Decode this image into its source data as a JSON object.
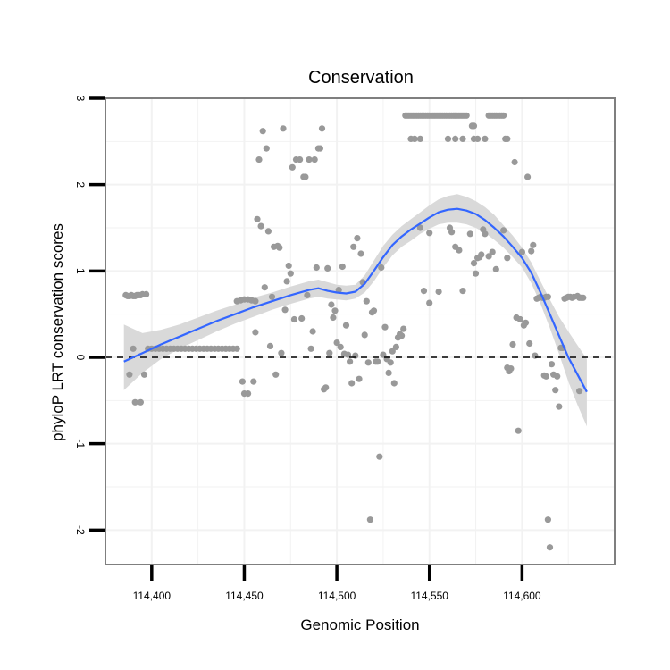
{
  "chart_data": {
    "type": "scatter",
    "title": "Conservation",
    "xlabel": "Genomic Position",
    "ylabel": "phyloP LRT conservation scores",
    "xlim": [
      114375,
      114650
    ],
    "ylim": [
      -2.4,
      3.0
    ],
    "x_ticks": [
      {
        "value": 114400,
        "label": "114,400"
      },
      {
        "value": 114450,
        "label": "114,450"
      },
      {
        "value": 114500,
        "label": "114,500"
      },
      {
        "value": 114550,
        "label": "114,550"
      },
      {
        "value": 114600,
        "label": "114,600"
      }
    ],
    "y_ticks": [
      {
        "value": 3,
        "label": "3"
      },
      {
        "value": 2,
        "label": "2"
      },
      {
        "value": 1,
        "label": "1"
      },
      {
        "value": 0,
        "label": "0"
      },
      {
        "value": -1,
        "label": "-1"
      },
      {
        "value": -2,
        "label": "-2"
      }
    ],
    "reference_line": {
      "y": 0,
      "style": "dashed"
    },
    "colors": {
      "points": "#999999",
      "smooth_line": "#3366ff",
      "ribbon": "#d9d9d9",
      "grid": "#f2f2f2",
      "border": "#7f7f7f"
    },
    "points": [
      [
        114386,
        0.72
      ],
      [
        114387,
        0.71
      ],
      [
        114388,
        0.71
      ],
      [
        114389,
        0.72
      ],
      [
        114390,
        0.71
      ],
      [
        114391,
        0.71
      ],
      [
        114392,
        0.72
      ],
      [
        114393,
        0.72
      ],
      [
        114394,
        0.72
      ],
      [
        114395,
        0.73
      ],
      [
        114397,
        0.73
      ],
      [
        114388,
        -0.2
      ],
      [
        114390,
        0.1
      ],
      [
        114391,
        -0.52
      ],
      [
        114394,
        -0.52
      ],
      [
        114396,
        -0.2
      ],
      [
        114398,
        0.1
      ],
      [
        114400,
        0.1
      ],
      [
        114402,
        0.1
      ],
      [
        114404,
        0.1
      ],
      [
        114406,
        0.1
      ],
      [
        114408,
        0.1
      ],
      [
        114410,
        0.1
      ],
      [
        114412,
        0.1
      ],
      [
        114414,
        0.1
      ],
      [
        114416,
        0.1
      ],
      [
        114418,
        0.1
      ],
      [
        114420,
        0.1
      ],
      [
        114422,
        0.1
      ],
      [
        114424,
        0.1
      ],
      [
        114426,
        0.1
      ],
      [
        114428,
        0.1
      ],
      [
        114430,
        0.1
      ],
      [
        114432,
        0.1
      ],
      [
        114434,
        0.1
      ],
      [
        114436,
        0.1
      ],
      [
        114438,
        0.1
      ],
      [
        114440,
        0.1
      ],
      [
        114442,
        0.1
      ],
      [
        114444,
        0.1
      ],
      [
        114446,
        0.1
      ],
      [
        114446,
        0.65
      ],
      [
        114448,
        0.66
      ],
      [
        114450,
        0.67
      ],
      [
        114452,
        0.67
      ],
      [
        114454,
        0.66
      ],
      [
        114456,
        0.65
      ],
      [
        114449,
        -0.28
      ],
      [
        114450,
        -0.42
      ],
      [
        114452,
        -0.42
      ],
      [
        114455,
        -0.28
      ],
      [
        114456,
        0.29
      ],
      [
        114457,
        1.6
      ],
      [
        114458,
        2.29
      ],
      [
        114459,
        1.52
      ],
      [
        114460,
        2.62
      ],
      [
        114461,
        0.81
      ],
      [
        114462,
        2.42
      ],
      [
        114463,
        1.46
      ],
      [
        114464,
        0.13
      ],
      [
        114465,
        0.7
      ],
      [
        114466,
        1.28
      ],
      [
        114467,
        -0.2
      ],
      [
        114468,
        1.29
      ],
      [
        114469,
        1.27
      ],
      [
        114470,
        0.05
      ],
      [
        114471,
        2.65
      ],
      [
        114472,
        0.55
      ],
      [
        114473,
        0.88
      ],
      [
        114474,
        1.06
      ],
      [
        114475,
        0.97
      ],
      [
        114476,
        2.2
      ],
      [
        114477,
        0.44
      ],
      [
        114478,
        2.29
      ],
      [
        114480,
        2.29
      ],
      [
        114481,
        0.45
      ],
      [
        114482,
        2.09
      ],
      [
        114483,
        2.09
      ],
      [
        114484,
        0.72
      ],
      [
        114485,
        2.29
      ],
      [
        114486,
        0.1
      ],
      [
        114487,
        0.3
      ],
      [
        114488,
        2.29
      ],
      [
        114489,
        1.04
      ],
      [
        114490,
        2.42
      ],
      [
        114491,
        2.42
      ],
      [
        114492,
        2.65
      ],
      [
        114493,
        -0.37
      ],
      [
        114494,
        -0.35
      ],
      [
        114495,
        1.03
      ],
      [
        114496,
        0.05
      ],
      [
        114497,
        0.61
      ],
      [
        114498,
        0.46
      ],
      [
        114499,
        0.54
      ],
      [
        114500,
        0.17
      ],
      [
        114501,
        0.78
      ],
      [
        114502,
        0.12
      ],
      [
        114503,
        1.05
      ],
      [
        114504,
        0.04
      ],
      [
        114505,
        0.37
      ],
      [
        114506,
        0.03
      ],
      [
        114507,
        -0.05
      ],
      [
        114508,
        -0.3
      ],
      [
        114509,
        1.28
      ],
      [
        114510,
        0.02
      ],
      [
        114511,
        1.38
      ],
      [
        114512,
        -0.25
      ],
      [
        114513,
        1.2
      ],
      [
        114514,
        0.87
      ],
      [
        114515,
        0.26
      ],
      [
        114516,
        0.65
      ],
      [
        114517,
        -0.06
      ],
      [
        114518,
        -1.88
      ],
      [
        114519,
        0.52
      ],
      [
        114520,
        0.54
      ],
      [
        114521,
        -0.05
      ],
      [
        114522,
        -0.05
      ],
      [
        114523,
        -1.15
      ],
      [
        114524,
        1.04
      ],
      [
        114525,
        0.03
      ],
      [
        114526,
        0.35
      ],
      [
        114527,
        -0.02
      ],
      [
        114528,
        -0.18
      ],
      [
        114529,
        -0.06
      ],
      [
        114530,
        0.07
      ],
      [
        114531,
        -0.3
      ],
      [
        114532,
        0.12
      ],
      [
        114533,
        0.23
      ],
      [
        114534,
        0.27
      ],
      [
        114535,
        0.25
      ],
      [
        114536,
        0.33
      ],
      [
        114537,
        2.8
      ],
      [
        114538,
        2.8
      ],
      [
        114539,
        2.8
      ],
      [
        114540,
        2.8
      ],
      [
        114541,
        2.8
      ],
      [
        114542,
        2.8
      ],
      [
        114543,
        2.8
      ],
      [
        114544,
        2.8
      ],
      [
        114545,
        2.8
      ],
      [
        114546,
        2.8
      ],
      [
        114547,
        2.8
      ],
      [
        114548,
        2.8
      ],
      [
        114549,
        2.8
      ],
      [
        114550,
        2.8
      ],
      [
        114551,
        2.8
      ],
      [
        114552,
        2.8
      ],
      [
        114553,
        2.8
      ],
      [
        114554,
        2.8
      ],
      [
        114555,
        2.8
      ],
      [
        114556,
        2.8
      ],
      [
        114557,
        2.8
      ],
      [
        114558,
        2.8
      ],
      [
        114559,
        2.8
      ],
      [
        114560,
        2.8
      ],
      [
        114561,
        2.8
      ],
      [
        114562,
        2.8
      ],
      [
        114563,
        2.8
      ],
      [
        114564,
        2.8
      ],
      [
        114565,
        2.8
      ],
      [
        114566,
        2.8
      ],
      [
        114567,
        2.8
      ],
      [
        114568,
        2.8
      ],
      [
        114569,
        2.8
      ],
      [
        114570,
        2.8
      ],
      [
        114540,
        2.53
      ],
      [
        114542,
        2.53
      ],
      [
        114545,
        2.53
      ],
      [
        114560,
        2.53
      ],
      [
        114564,
        2.53
      ],
      [
        114568,
        2.53
      ],
      [
        114574,
        2.53
      ],
      [
        114576,
        2.53
      ],
      [
        114580,
        2.53
      ],
      [
        114573,
        2.68
      ],
      [
        114574,
        2.68
      ],
      [
        114582,
        2.8
      ],
      [
        114583,
        2.8
      ],
      [
        114584,
        2.8
      ],
      [
        114585,
        2.8
      ],
      [
        114586,
        2.8
      ],
      [
        114587,
        2.8
      ],
      [
        114588,
        2.8
      ],
      [
        114589,
        2.8
      ],
      [
        114590,
        2.8
      ],
      [
        114591,
        2.53
      ],
      [
        114592,
        2.53
      ],
      [
        114545,
        1.5
      ],
      [
        114550,
        1.44
      ],
      [
        114547,
        0.77
      ],
      [
        114550,
        0.63
      ],
      [
        114555,
        0.76
      ],
      [
        114561,
        1.5
      ],
      [
        114562,
        1.45
      ],
      [
        114564,
        1.28
      ],
      [
        114566,
        1.24
      ],
      [
        114568,
        0.77
      ],
      [
        114572,
        1.43
      ],
      [
        114574,
        1.09
      ],
      [
        114575,
        0.97
      ],
      [
        114576,
        1.15
      ],
      [
        114577,
        1.16
      ],
      [
        114578,
        1.19
      ],
      [
        114579,
        1.48
      ],
      [
        114580,
        1.43
      ],
      [
        114582,
        1.17
      ],
      [
        114584,
        1.22
      ],
      [
        114586,
        1.02
      ],
      [
        114590,
        1.47
      ],
      [
        114592,
        1.15
      ],
      [
        114592,
        -0.12
      ],
      [
        114593,
        -0.16
      ],
      [
        114594,
        -0.13
      ],
      [
        114595,
        0.15
      ],
      [
        114596,
        2.26
      ],
      [
        114597,
        0.46
      ],
      [
        114598,
        -0.85
      ],
      [
        114599,
        0.44
      ],
      [
        114600,
        1.22
      ],
      [
        114601,
        0.37
      ],
      [
        114602,
        0.4
      ],
      [
        114603,
        2.09
      ],
      [
        114604,
        0.16
      ],
      [
        114605,
        1.23
      ],
      [
        114606,
        1.3
      ],
      [
        114607,
        0.02
      ],
      [
        114608,
        0.68
      ],
      [
        114609,
        0.69
      ],
      [
        114610,
        0.7
      ],
      [
        114611,
        0.69
      ],
      [
        114612,
        0.69
      ],
      [
        114613,
        0.7
      ],
      [
        114614,
        0.7
      ],
      [
        114612,
        -0.21
      ],
      [
        114613,
        -0.22
      ],
      [
        114614,
        -1.88
      ],
      [
        114615,
        -2.2
      ],
      [
        114616,
        -0.08
      ],
      [
        114617,
        -0.2
      ],
      [
        114618,
        -0.38
      ],
      [
        114619,
        -0.22
      ],
      [
        114620,
        -0.57
      ],
      [
        114621,
        0.11
      ],
      [
        114622,
        0.11
      ],
      [
        114623,
        0.68
      ],
      [
        114624,
        0.69
      ],
      [
        114625,
        0.7
      ],
      [
        114626,
        0.7
      ],
      [
        114627,
        0.69
      ],
      [
        114628,
        0.7
      ],
      [
        114630,
        0.71
      ],
      [
        114631,
        0.69
      ],
      [
        114632,
        0.69
      ],
      [
        114633,
        0.69
      ],
      [
        114631,
        -0.39
      ]
    ],
    "smooth_fit": {
      "x": [
        114385,
        114395,
        114405,
        114415,
        114425,
        114435,
        114445,
        114455,
        114465,
        114475,
        114485,
        114490,
        114495,
        114500,
        114505,
        114510,
        114515,
        114520,
        114525,
        114530,
        114535,
        114540,
        114545,
        114550,
        114555,
        114560,
        114565,
        114570,
        114575,
        114580,
        114585,
        114590,
        114595,
        114600,
        114605,
        114610,
        114615,
        114620,
        114625,
        114630,
        114635
      ],
      "y": [
        -0.05,
        0.05,
        0.15,
        0.24,
        0.33,
        0.42,
        0.5,
        0.58,
        0.65,
        0.72,
        0.78,
        0.8,
        0.77,
        0.75,
        0.74,
        0.76,
        0.85,
        1.0,
        1.16,
        1.3,
        1.4,
        1.48,
        1.55,
        1.62,
        1.68,
        1.71,
        1.72,
        1.7,
        1.66,
        1.59,
        1.5,
        1.4,
        1.28,
        1.15,
        0.98,
        0.75,
        0.5,
        0.25,
        0.0,
        -0.2,
        -0.4
      ],
      "lower": [
        -0.38,
        -0.18,
        -0.02,
        0.1,
        0.2,
        0.3,
        0.39,
        0.47,
        0.55,
        0.62,
        0.68,
        0.7,
        0.68,
        0.67,
        0.66,
        0.68,
        0.75,
        0.88,
        1.04,
        1.18,
        1.28,
        1.35,
        1.43,
        1.49,
        1.54,
        1.56,
        1.56,
        1.54,
        1.5,
        1.44,
        1.36,
        1.27,
        1.16,
        1.04,
        0.86,
        0.62,
        0.34,
        0.04,
        -0.28,
        -0.55,
        -0.8
      ],
      "upper": [
        0.38,
        0.28,
        0.32,
        0.38,
        0.46,
        0.54,
        0.61,
        0.69,
        0.75,
        0.82,
        0.88,
        0.9,
        0.87,
        0.84,
        0.83,
        0.84,
        0.95,
        1.12,
        1.29,
        1.42,
        1.52,
        1.6,
        1.68,
        1.76,
        1.83,
        1.87,
        1.89,
        1.86,
        1.81,
        1.74,
        1.65,
        1.53,
        1.41,
        1.27,
        1.1,
        0.88,
        0.67,
        0.47,
        0.3,
        0.14,
        -0.02
      ]
    }
  }
}
